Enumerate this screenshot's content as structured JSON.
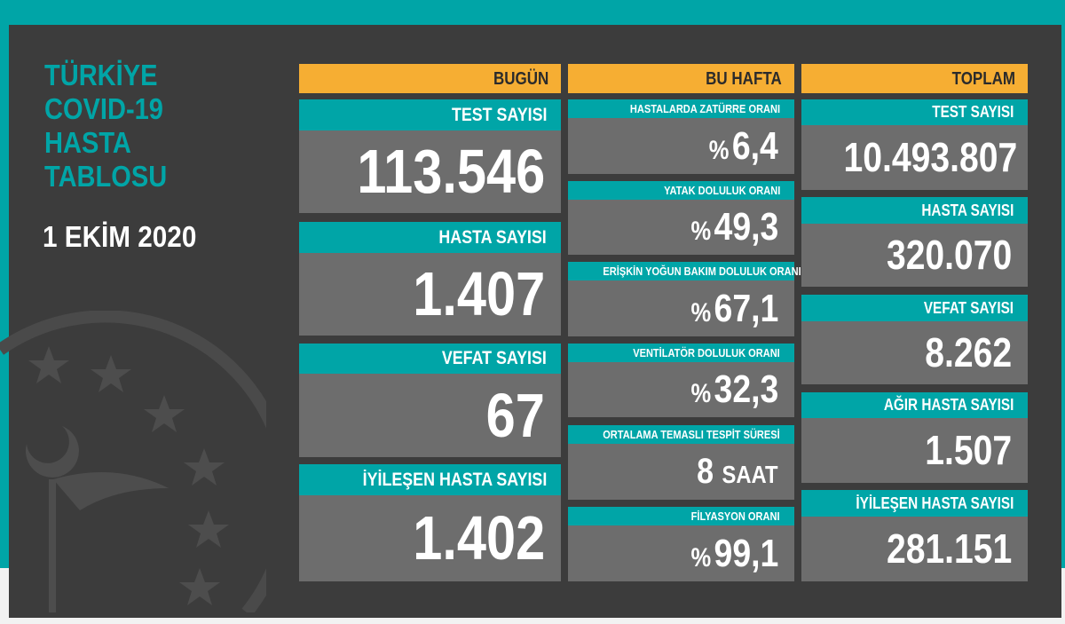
{
  "title_lines": [
    "TÜRKİYE",
    "COVID-19",
    "HASTA",
    "TABLOSU"
  ],
  "date": "1 EKİM 2020",
  "colors": {
    "teal": "#00a5a7",
    "yellow": "#f6ae33",
    "dark": "#3c3c3c",
    "card": "#6d6d6d"
  },
  "today": {
    "header": "BUGÜN",
    "items": [
      {
        "label": "TEST SAYISI",
        "value": "113.546"
      },
      {
        "label": "HASTA SAYISI",
        "value": "1.407"
      },
      {
        "label": "VEFAT SAYISI",
        "value": "67"
      },
      {
        "label": "İYİLEŞEN HASTA SAYISI",
        "value": "1.402"
      }
    ]
  },
  "week": {
    "header": "BU HAFTA",
    "items": [
      {
        "label": "HASTALARDA ZATÜRRE ORANI",
        "prefix": "%",
        "value": "6,4"
      },
      {
        "label": "YATAK DOLULUK ORANI",
        "prefix": "%",
        "value": "49,3"
      },
      {
        "label": "ERİŞKİN YOĞUN BAKIM DOLULUK ORANI",
        "prefix": "%",
        "value": "67,1"
      },
      {
        "label": "VENTİLATÖR DOLULUK ORANI",
        "prefix": "%",
        "value": "32,3"
      },
      {
        "label": "ORTALAMA TEMASLI TESPİT SÜRESİ",
        "value": "8",
        "suffix": "SAAT"
      },
      {
        "label": "FİLYASYON ORANI",
        "prefix": "%",
        "value": "99,1"
      }
    ]
  },
  "total": {
    "header": "TOPLAM",
    "items": [
      {
        "label": "TEST SAYISI",
        "value": "10.493.807"
      },
      {
        "label": "HASTA SAYISI",
        "value": "320.070"
      },
      {
        "label": "VEFAT SAYISI",
        "value": "8.262"
      },
      {
        "label": "AĞIR HASTA SAYISI",
        "value": "1.507"
      },
      {
        "label": "İYİLEŞEN HASTA SAYISI",
        "value": "281.151"
      }
    ]
  }
}
